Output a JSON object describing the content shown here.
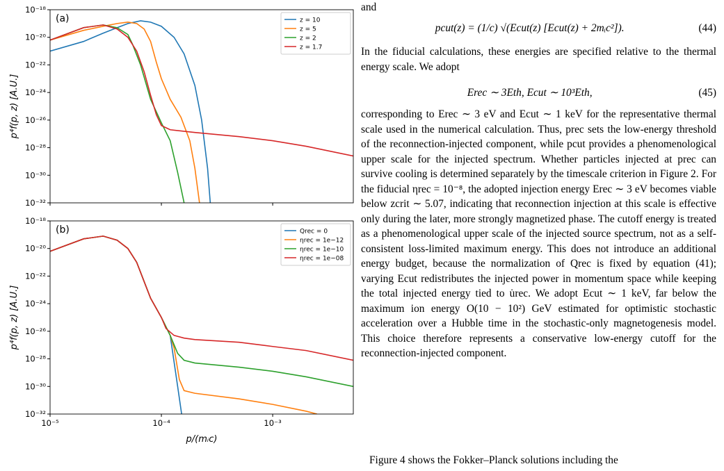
{
  "chart_data": [
    {
      "type": "line",
      "panel_label": "(a)",
      "ylabel": "p⁴f(p, z) [A.U.]",
      "xscale": "log",
      "yscale": "log",
      "xlim": [
        1e-05,
        0.0053
      ],
      "ylim": [
        1e-32,
        1e-18
      ],
      "xticks": [
        1e-05,
        0.0001,
        0.001
      ],
      "show_xticklabels": false,
      "yticks": [
        {
          "value": 1e-18,
          "label": "10⁻¹⁸"
        },
        {
          "value": 1e-20,
          "label": "10⁻²⁰"
        },
        {
          "value": 1e-22,
          "label": "10⁻²²"
        },
        {
          "value": 1e-24,
          "label": "10⁻²⁴"
        },
        {
          "value": 1e-26,
          "label": "10⁻²⁶"
        },
        {
          "value": 1e-28,
          "label": "10⁻²⁸"
        },
        {
          "value": 1e-30,
          "label": "10⁻³⁰"
        },
        {
          "value": 1e-32,
          "label": "10⁻³²"
        }
      ],
      "legend": "upper right",
      "series": [
        {
          "name": "z = 10",
          "color": "#1f77b4",
          "x": [
            1e-05,
            2e-05,
            3e-05,
            4e-05,
            5e-05,
            6.5e-05,
            8e-05,
            0.0001,
            0.00013,
            0.00016,
            0.0002,
            0.00023,
            0.00026,
            0.000275
          ],
          "values": [
            1e-21,
            5e-21,
            2e-20,
            5e-20,
            1e-19,
            1.58e-19,
            1.26e-19,
            6.3e-20,
            1e-20,
            6.3e-22,
            3.2e-24,
            1e-26,
            3.2e-30,
            1e-32
          ]
        },
        {
          "name": "z = 5",
          "color": "#ff7f0e",
          "x": [
            1e-05,
            2e-05,
            3e-05,
            4e-05,
            5e-05,
            6e-05,
            7e-05,
            8e-05,
            9e-05,
            0.0001,
            0.00012,
            0.00015,
            0.00018,
            0.0002,
            0.00022
          ],
          "values": [
            6.3e-21,
            3.2e-20,
            6.3e-20,
            1e-19,
            1.26e-19,
            1e-19,
            4e-20,
            5e-21,
            1.6e-22,
            1e-23,
            3.2e-25,
            1.6e-26,
            3.2e-28,
            3.2e-30,
            1e-32
          ]
        },
        {
          "name": "z = 2",
          "color": "#2ca02c",
          "x": [
            1e-05,
            2e-05,
            3e-05,
            4e-05,
            5e-05,
            5.5e-05,
            6.5e-05,
            8e-05,
            0.0001,
            0.00012,
            0.00014,
            0.00016
          ],
          "values": [
            6.3e-21,
            5e-20,
            7.9e-20,
            5e-20,
            1.6e-20,
            3.2e-21,
            1e-22,
            3.2e-25,
            6.3e-27,
            3.2e-28,
            1.6e-30,
            1e-32
          ]
        },
        {
          "name": "z = 1.7",
          "color": "#d62728",
          "x": [
            1e-05,
            2e-05,
            3e-05,
            4e-05,
            5e-05,
            6e-05,
            7e-05,
            8e-05,
            9e-05,
            0.0001,
            0.00012,
            0.0002,
            0.0005,
            0.001,
            0.002,
            0.0053
          ],
          "values": [
            6.3e-21,
            5e-20,
            7.9e-20,
            4e-20,
            1e-20,
            1e-21,
            3.2e-23,
            6.3e-25,
            2.5e-26,
            4e-27,
            2e-27,
            1.26e-27,
            6.3e-28,
            3.2e-28,
            1.26e-28,
            2.5e-29
          ]
        }
      ]
    },
    {
      "type": "line",
      "panel_label": "(b)",
      "ylabel": "p⁴f(p, z) [A.U.]",
      "xlabel": "p/(mᵢc)",
      "xscale": "log",
      "yscale": "log",
      "xlim": [
        1e-05,
        0.0053
      ],
      "ylim": [
        1e-32,
        1e-18
      ],
      "xticks": [
        {
          "value": 1e-05,
          "label": "10⁻⁵"
        },
        {
          "value": 0.0001,
          "label": "10⁻⁴"
        },
        {
          "value": 0.001,
          "label": "10⁻³"
        }
      ],
      "show_xticklabels": true,
      "yticks": [
        {
          "value": 1e-18,
          "label": "10⁻¹⁸"
        },
        {
          "value": 1e-20,
          "label": "10⁻²⁰"
        },
        {
          "value": 1e-22,
          "label": "10⁻²²"
        },
        {
          "value": 1e-24,
          "label": "10⁻²⁴"
        },
        {
          "value": 1e-26,
          "label": "10⁻²⁶"
        },
        {
          "value": 1e-28,
          "label": "10⁻²⁸"
        },
        {
          "value": 1e-30,
          "label": "10⁻³⁰"
        },
        {
          "value": 1e-32,
          "label": "10⁻³²"
        }
      ],
      "legend": "upper right",
      "series": [
        {
          "name": "Qrec = 0",
          "color": "#1f77b4",
          "x": [
            1e-05,
            2e-05,
            3e-05,
            4e-05,
            5e-05,
            6e-05,
            7e-05,
            8e-05,
            0.0001,
            0.00012,
            0.00014,
            0.000152
          ],
          "values": [
            6.3e-21,
            5e-20,
            7.9e-20,
            4e-20,
            1e-20,
            1e-21,
            4e-23,
            2.5e-24,
            1e-25,
            5e-27,
            1e-30,
            1e-32
          ]
        },
        {
          "name": "ηrec = 1e−12",
          "color": "#ff7f0e",
          "x": [
            1e-05,
            2e-05,
            3e-05,
            4e-05,
            5e-05,
            6e-05,
            7e-05,
            8e-05,
            0.0001,
            0.00012,
            0.00013,
            0.000145,
            0.00016,
            0.0002,
            0.0005,
            0.001,
            0.002,
            0.0025
          ],
          "values": [
            6.3e-21,
            5e-20,
            7.9e-20,
            4e-20,
            1e-20,
            1e-21,
            4e-23,
            2.5e-24,
            1e-25,
            5e-27,
            6.3e-28,
            3.2e-30,
            5e-31,
            3.2e-31,
            1.26e-31,
            5e-32,
            1.6e-32,
            1e-32
          ]
        },
        {
          "name": "ηrec = 1e−10",
          "color": "#2ca02c",
          "x": [
            1e-05,
            2e-05,
            3e-05,
            4e-05,
            5e-05,
            6e-05,
            7e-05,
            8e-05,
            0.0001,
            0.00012,
            0.00014,
            0.00016,
            0.0002,
            0.0005,
            0.001,
            0.002,
            0.0053
          ],
          "values": [
            6.3e-21,
            5e-20,
            7.9e-20,
            4e-20,
            1e-20,
            1e-21,
            4e-23,
            2.5e-24,
            1e-25,
            5e-27,
            2.5e-28,
            7.9e-29,
            5e-29,
            2.5e-29,
            1.26e-29,
            5e-30,
            1e-30
          ]
        },
        {
          "name": "ηrec = 1e−08",
          "color": "#d62728",
          "x": [
            1e-05,
            2e-05,
            3e-05,
            4e-05,
            5e-05,
            6e-05,
            7e-05,
            8e-05,
            0.0001,
            0.00011,
            0.00013,
            0.00016,
            0.0002,
            0.0005,
            0.001,
            0.002,
            0.0053
          ],
          "values": [
            6.3e-21,
            5e-20,
            7.9e-20,
            4e-20,
            1e-20,
            1e-21,
            4e-23,
            2.5e-24,
            1e-25,
            1.6e-26,
            5e-27,
            3.2e-27,
            2.5e-27,
            1.6e-27,
            7.9e-28,
            4e-28,
            7.9e-29
          ]
        }
      ]
    }
  ],
  "document": {
    "lead": "and",
    "equation_44": {
      "text": "pcut(z) = (1/c) √(Ecut(z) [Ecut(z) + 2mᵢc²]).",
      "number": "(44)"
    },
    "paragraph_1": "In the fiducial calculations, these energies are specified relative to the thermal energy scale. We adopt",
    "equation_45": {
      "text": "Erec ∼ 3Eth,        Ecut ∼ 10³Eth,",
      "number": "(45)"
    },
    "paragraph_2": "corresponding to Erec ∼ 3 eV and Ecut ∼ 1 keV for the representative thermal scale used in the numerical calculation. Thus, prec sets the low-energy threshold of the reconnection-injected component, while pcut provides a phenomenological upper scale for the injected spectrum. Whether particles injected at prec can survive cooling is determined separately by the timescale criterion in Figure 2. For the fiducial ηrec = 10⁻⁸, the adopted injection energy Erec ∼ 3 eV becomes viable below zcrit ∼ 5.07, indicating that reconnection injection at this scale is effective only during the later, more strongly magnetized phase. The cutoff energy is treated as a phenomenological upper scale of the injected source spectrum, not as a self-consistent loss-limited maximum energy. This does not introduce an additional energy budget, because the normalization of Qrec is fixed by equation (41); varying Ecut redistributes the injected power in momentum space while keeping the total injected energy tied to u̇rec. We adopt Ecut ∼ 1 keV, far below the maximum ion energy O(10 − 10²) GeV estimated for optimistic stochastic acceleration over a Hubble time in the stochastic-only magnetogenesis model. This choice therefore represents a conservative low-energy cutoff for the reconnection-injected component.",
    "paragraph_3": "Figure 4 shows the Fokker–Planck solutions including the"
  }
}
